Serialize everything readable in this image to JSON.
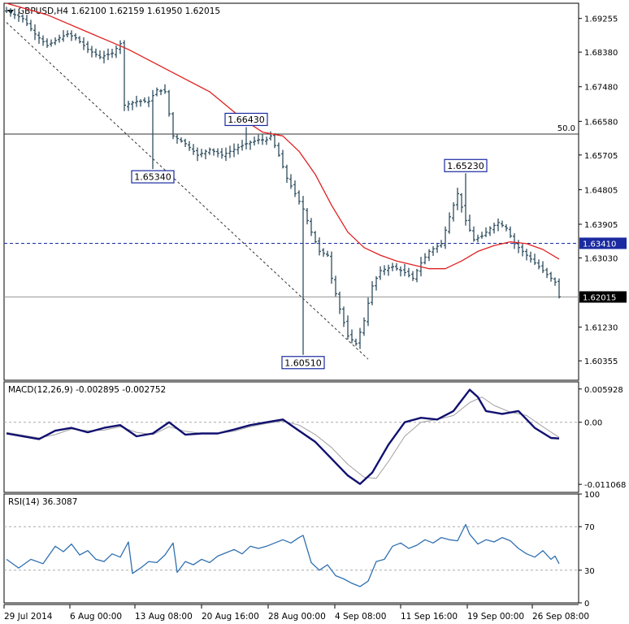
{
  "chart_data": [
    {
      "type": "ohlc",
      "panel": "price",
      "title": "GBPUSD,H4",
      "ohlc_values": [
        "1.62100",
        "1.62159",
        "1.61950",
        "1.62015"
      ],
      "yticks": [
        "1.69255",
        "1.68380",
        "1.67480",
        "1.66580",
        "1.65705",
        "1.64805",
        "1.63905",
        "1.63030",
        "1.61230",
        "1.60355"
      ],
      "ylim": [
        1.5985,
        1.6965
      ],
      "xticks": [
        "29 Jul 2014",
        "6 Aug 00:00",
        "13 Aug 08:00",
        "20 Aug 16:00",
        "28 Aug 00:00",
        "4 Sep 08:00",
        "11 Sep 16:00",
        "19 Sep 00:00",
        "26 Sep 08:00"
      ],
      "fib_level": {
        "label": "50.0",
        "value": 1.6625
      },
      "resistance_line": {
        "label": "1.63410",
        "value": 1.6341
      },
      "last_price": {
        "label": "1.62015",
        "value": 1.62015
      },
      "annotations": [
        {
          "label": "1.66430",
          "value": 1.6643,
          "bar": 59
        },
        {
          "label": "1.65340",
          "value": 1.6534,
          "bar": 36
        },
        {
          "label": "1.65230",
          "value": 1.6523,
          "bar": 113
        },
        {
          "label": "1.60510",
          "value": 1.6051,
          "bar": 73
        }
      ],
      "close_path": [
        [
          0,
          1.6945
        ],
        [
          4,
          1.6925
        ],
        [
          7,
          1.6885
        ],
        [
          10,
          1.6855
        ],
        [
          13,
          1.6875
        ],
        [
          15,
          1.6885
        ],
        [
          17,
          1.6875
        ],
        [
          20,
          1.6845
        ],
        [
          23,
          1.6825
        ],
        [
          26,
          1.6835
        ],
        [
          28,
          1.686
        ],
        [
          29,
          1.67
        ],
        [
          32,
          1.671
        ],
        [
          35,
          1.671
        ],
        [
          37,
          1.674
        ],
        [
          39,
          1.6735
        ],
        [
          41,
          1.662
        ],
        [
          44,
          1.66
        ],
        [
          47,
          1.657
        ],
        [
          50,
          1.6585
        ],
        [
          53,
          1.657
        ],
        [
          56,
          1.6585
        ],
        [
          59,
          1.66
        ],
        [
          62,
          1.661
        ],
        [
          64,
          1.661
        ],
        [
          65,
          1.662
        ],
        [
          67,
          1.657
        ],
        [
          69,
          1.651
        ],
        [
          71,
          1.647
        ],
        [
          73,
          1.643
        ],
        [
          75,
          1.637
        ],
        [
          77,
          1.632
        ],
        [
          79,
          1.631
        ],
        [
          80,
          1.625
        ],
        [
          82,
          1.617
        ],
        [
          84,
          1.61
        ],
        [
          86,
          1.608
        ],
        [
          88,
          1.614
        ],
        [
          90,
          1.623
        ],
        [
          92,
          1.627
        ],
        [
          95,
          1.628
        ],
        [
          98,
          1.6265
        ],
        [
          100,
          1.625
        ],
        [
          102,
          1.629
        ],
        [
          104,
          1.632
        ],
        [
          107,
          1.634
        ],
        [
          109,
          1.641
        ],
        [
          111,
          1.647
        ],
        [
          113,
          1.64
        ],
        [
          115,
          1.635
        ],
        [
          117,
          1.636
        ],
        [
          119,
          1.638
        ],
        [
          121,
          1.6395
        ],
        [
          123,
          1.638
        ],
        [
          125,
          1.634
        ],
        [
          127,
          1.632
        ],
        [
          129,
          1.63
        ],
        [
          131,
          1.628
        ],
        [
          133,
          1.626
        ],
        [
          135,
          1.624
        ],
        [
          136,
          1.6202
        ]
      ],
      "sma_path": [
        [
          0,
          1.6965
        ],
        [
          10,
          1.6935
        ],
        [
          20,
          1.689
        ],
        [
          30,
          1.6845
        ],
        [
          40,
          1.679
        ],
        [
          50,
          1.6735
        ],
        [
          58,
          1.6665
        ],
        [
          63,
          1.663
        ],
        [
          68,
          1.662
        ],
        [
          72,
          1.658
        ],
        [
          76,
          1.652
        ],
        [
          80,
          1.644
        ],
        [
          84,
          1.637
        ],
        [
          88,
          1.633
        ],
        [
          92,
          1.631
        ],
        [
          96,
          1.6295
        ],
        [
          100,
          1.6285
        ],
        [
          104,
          1.6275
        ],
        [
          108,
          1.6275
        ],
        [
          112,
          1.6295
        ],
        [
          116,
          1.632
        ],
        [
          120,
          1.6335
        ],
        [
          124,
          1.6345
        ],
        [
          128,
          1.634
        ],
        [
          132,
          1.6325
        ],
        [
          136,
          1.63
        ]
      ],
      "series_colors": {
        "bars": "#2f4f5f",
        "sma": "#e02020",
        "resistance": "#1a2aa0",
        "label_box": "#1a2aa0"
      }
    },
    {
      "type": "line",
      "panel": "macd",
      "title": "MACD(12,26,9) -0.002895 -0.002752",
      "yticks": [
        "0.005928",
        "0.00",
        "-0.011068"
      ],
      "ylim": [
        -0.0125,
        0.0072
      ],
      "macd_path": [
        [
          0,
          -0.002
        ],
        [
          8,
          -0.003
        ],
        [
          12,
          -0.0015
        ],
        [
          16,
          -0.001
        ],
        [
          20,
          -0.0018
        ],
        [
          24,
          -0.001
        ],
        [
          28,
          -0.0005
        ],
        [
          32,
          -0.0025
        ],
        [
          36,
          -0.002
        ],
        [
          40,
          0.0
        ],
        [
          44,
          -0.0022
        ],
        [
          48,
          -0.002
        ],
        [
          52,
          -0.002
        ],
        [
          56,
          -0.0013
        ],
        [
          60,
          -0.0005
        ],
        [
          64,
          0.0
        ],
        [
          68,
          0.0005
        ],
        [
          72,
          -0.0015
        ],
        [
          76,
          -0.0035
        ],
        [
          80,
          -0.0065
        ],
        [
          84,
          -0.0095
        ],
        [
          87,
          -0.011
        ],
        [
          90,
          -0.009
        ],
        [
          94,
          -0.004
        ],
        [
          98,
          0.0
        ],
        [
          102,
          0.0008
        ],
        [
          106,
          0.0005
        ],
        [
          110,
          0.002
        ],
        [
          114,
          0.0058
        ],
        [
          116,
          0.0045
        ],
        [
          118,
          0.002
        ],
        [
          122,
          0.0015
        ],
        [
          126,
          0.002
        ],
        [
          130,
          -0.001
        ],
        [
          134,
          -0.0028
        ],
        [
          136,
          -0.0029
        ]
      ],
      "signal_path": [
        [
          0,
          -0.0018
        ],
        [
          8,
          -0.0028
        ],
        [
          12,
          -0.0022
        ],
        [
          16,
          -0.0012
        ],
        [
          20,
          -0.0015
        ],
        [
          24,
          -0.0014
        ],
        [
          28,
          -0.0008
        ],
        [
          32,
          -0.0018
        ],
        [
          36,
          -0.0022
        ],
        [
          40,
          -0.0008
        ],
        [
          44,
          -0.0016
        ],
        [
          48,
          -0.002
        ],
        [
          52,
          -0.002
        ],
        [
          56,
          -0.0016
        ],
        [
          60,
          -0.0008
        ],
        [
          64,
          -0.0002
        ],
        [
          68,
          0.0002
        ],
        [
          72,
          -0.0005
        ],
        [
          76,
          -0.0022
        ],
        [
          80,
          -0.0045
        ],
        [
          84,
          -0.0075
        ],
        [
          88,
          -0.0098
        ],
        [
          91,
          -0.01
        ],
        [
          94,
          -0.007
        ],
        [
          98,
          -0.0025
        ],
        [
          102,
          0.0
        ],
        [
          106,
          0.0005
        ],
        [
          110,
          0.0012
        ],
        [
          114,
          0.0035
        ],
        [
          117,
          0.0045
        ],
        [
          120,
          0.003
        ],
        [
          124,
          0.0018
        ],
        [
          128,
          0.0012
        ],
        [
          132,
          -0.0008
        ],
        [
          136,
          -0.0027
        ]
      ],
      "series_colors": {
        "macd": "#101070",
        "signal": "#a0a0a0"
      }
    },
    {
      "type": "line",
      "panel": "rsi",
      "title": "RSI(14) 36.3087",
      "yticks": [
        "100",
        "70",
        "30",
        "0"
      ],
      "ylim": [
        0,
        100
      ],
      "levels": [
        70,
        30
      ],
      "rsi_path": [
        [
          0,
          40
        ],
        [
          3,
          32
        ],
        [
          6,
          40
        ],
        [
          9,
          36
        ],
        [
          12,
          52
        ],
        [
          14,
          47
        ],
        [
          16,
          54
        ],
        [
          18,
          44
        ],
        [
          20,
          48
        ],
        [
          22,
          40
        ],
        [
          24,
          38
        ],
        [
          26,
          45
        ],
        [
          28,
          42
        ],
        [
          30,
          56
        ],
        [
          31,
          27
        ],
        [
          33,
          32
        ],
        [
          35,
          38
        ],
        [
          37,
          37
        ],
        [
          39,
          44
        ],
        [
          41,
          55
        ],
        [
          42,
          28
        ],
        [
          44,
          38
        ],
        [
          46,
          35
        ],
        [
          48,
          40
        ],
        [
          50,
          37
        ],
        [
          52,
          43
        ],
        [
          54,
          46
        ],
        [
          56,
          49
        ],
        [
          58,
          45
        ],
        [
          60,
          52
        ],
        [
          62,
          50
        ],
        [
          64,
          52
        ],
        [
          66,
          55
        ],
        [
          68,
          58
        ],
        [
          70,
          55
        ],
        [
          72,
          60
        ],
        [
          73,
          62
        ],
        [
          75,
          37
        ],
        [
          77,
          30
        ],
        [
          79,
          35
        ],
        [
          81,
          25
        ],
        [
          83,
          22
        ],
        [
          85,
          18
        ],
        [
          87,
          15
        ],
        [
          89,
          20
        ],
        [
          91,
          38
        ],
        [
          93,
          40
        ],
        [
          95,
          52
        ],
        [
          97,
          55
        ],
        [
          99,
          50
        ],
        [
          101,
          53
        ],
        [
          103,
          58
        ],
        [
          105,
          55
        ],
        [
          107,
          60
        ],
        [
          109,
          58
        ],
        [
          111,
          57
        ],
        [
          113,
          72
        ],
        [
          114,
          63
        ],
        [
          116,
          54
        ],
        [
          118,
          58
        ],
        [
          120,
          56
        ],
        [
          122,
          60
        ],
        [
          124,
          57
        ],
        [
          126,
          50
        ],
        [
          128,
          45
        ],
        [
          130,
          42
        ],
        [
          132,
          48
        ],
        [
          134,
          40
        ],
        [
          135,
          43
        ],
        [
          136,
          36
        ]
      ],
      "series_colors": {
        "rsi": "#3070b0"
      }
    }
  ]
}
